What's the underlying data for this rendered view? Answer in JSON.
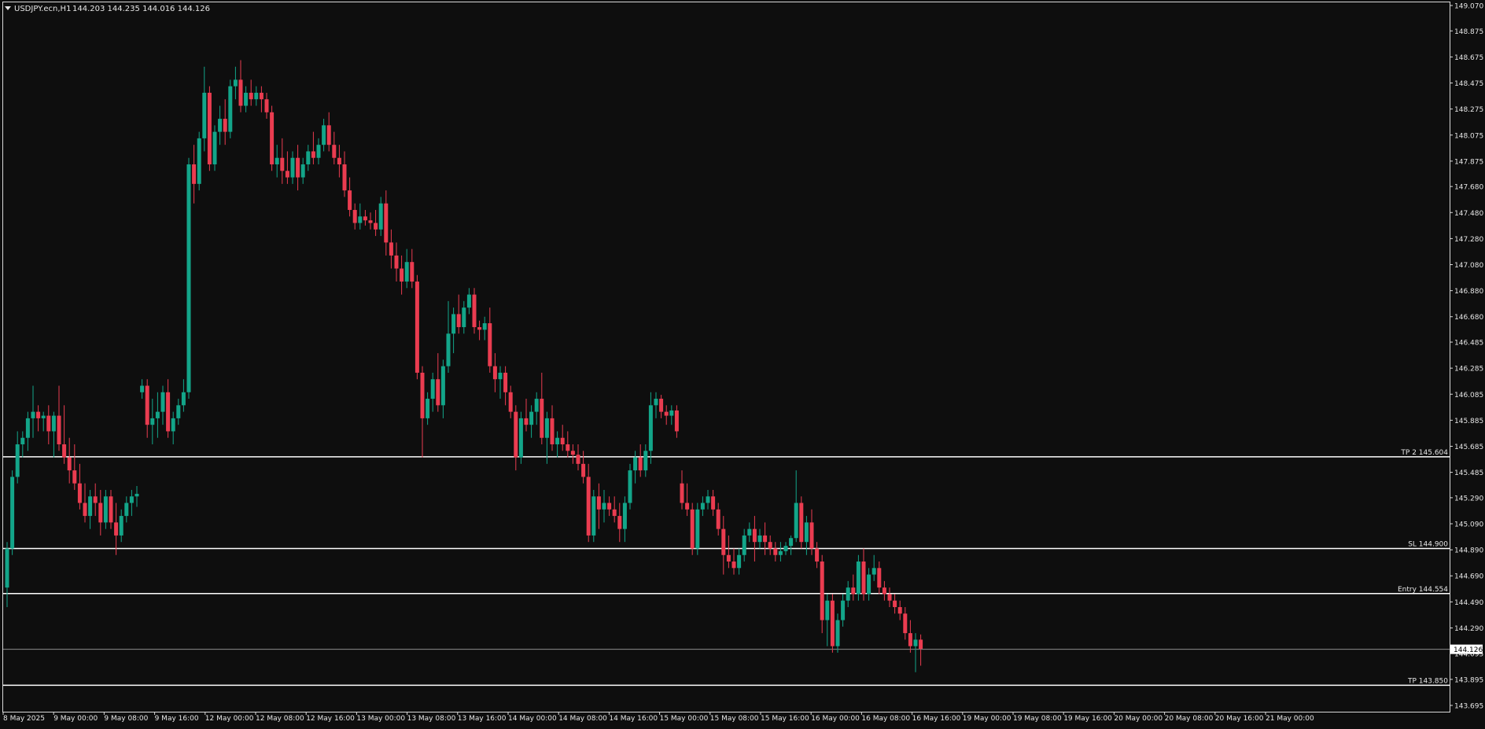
{
  "header": {
    "symbol_label": "USDJPY.ecn,H1",
    "ohlc_label": "144.203 144.235 144.016 144.126"
  },
  "colors": {
    "background": "#0e0e0e",
    "frame": "#d8d8d8",
    "bull": "#13a589",
    "bear": "#ea3c50",
    "level_line": "#ffffff",
    "bid_line": "#8c8c8c",
    "text": "#e6e6e6"
  },
  "chart_data": {
    "type": "candlestick",
    "symbol": "USDJPY.ecn",
    "timeframe": "H1",
    "grid": false,
    "y_axis": {
      "position": "right",
      "range": [
        143.695,
        149.07
      ],
      "ticks": [
        "149.070",
        "148.875",
        "148.675",
        "148.475",
        "148.275",
        "148.075",
        "147.875",
        "147.680",
        "147.480",
        "147.280",
        "147.080",
        "146.880",
        "146.680",
        "146.485",
        "146.285",
        "146.085",
        "145.885",
        "145.685",
        "145.485",
        "145.290",
        "145.090",
        "144.890",
        "144.690",
        "144.490",
        "144.290",
        "144.095",
        "143.895",
        "143.695"
      ]
    },
    "x_axis": {
      "ticks": [
        "8 May 2025",
        "9 May 00:00",
        "9 May 08:00",
        "9 May 16:00",
        "12 May 00:00",
        "12 May 08:00",
        "12 May 16:00",
        "13 May 00:00",
        "13 May 08:00",
        "13 May 16:00",
        "14 May 00:00",
        "14 May 08:00",
        "14 May 16:00",
        "15 May 00:00",
        "15 May 08:00",
        "15 May 16:00",
        "16 May 00:00",
        "16 May 08:00",
        "16 May 16:00",
        "19 May 00:00",
        "19 May 08:00",
        "19 May 16:00",
        "20 May 00:00",
        "20 May 08:00",
        "20 May 16:00",
        "21 May 00:00"
      ]
    },
    "levels": [
      {
        "label": "TP 2 145.604",
        "value": 145.604
      },
      {
        "label": "SL 144.900",
        "value": 144.9
      },
      {
        "label": "Entry 144.554",
        "value": 144.554
      },
      {
        "label": "TP 143.850",
        "value": 143.85
      }
    ],
    "current_price": {
      "value": 144.126,
      "label": "144.126"
    },
    "candles": [
      [
        144.6,
        144.95,
        144.45,
        144.9
      ],
      [
        144.9,
        145.5,
        144.85,
        145.45
      ],
      [
        145.45,
        145.8,
        145.4,
        145.7
      ],
      [
        145.7,
        145.8,
        145.6,
        145.75
      ],
      [
        145.75,
        145.95,
        145.65,
        145.9
      ],
      [
        145.9,
        146.15,
        145.75,
        145.95
      ],
      [
        145.95,
        146.0,
        145.8,
        145.9
      ],
      [
        145.9,
        145.95,
        145.8,
        145.92
      ],
      [
        145.92,
        146.0,
        145.7,
        145.8
      ],
      [
        145.8,
        145.95,
        145.6,
        145.92
      ],
      [
        145.92,
        146.15,
        145.65,
        145.7
      ],
      [
        145.7,
        146.0,
        145.55,
        145.6
      ],
      [
        145.6,
        145.75,
        145.4,
        145.5
      ],
      [
        145.5,
        145.7,
        145.35,
        145.4
      ],
      [
        145.4,
        145.55,
        145.2,
        145.25
      ],
      [
        145.25,
        145.4,
        145.1,
        145.15
      ],
      [
        145.15,
        145.35,
        145.05,
        145.3
      ],
      [
        145.3,
        145.4,
        145.15,
        145.25
      ],
      [
        145.25,
        145.35,
        145.0,
        145.1
      ],
      [
        145.1,
        145.35,
        145.05,
        145.3
      ],
      [
        145.3,
        145.35,
        145.05,
        145.1
      ],
      [
        145.1,
        145.25,
        144.85,
        145.0
      ],
      [
        145.0,
        145.2,
        144.95,
        145.15
      ],
      [
        145.15,
        145.3,
        145.1,
        145.25
      ],
      [
        145.25,
        145.35,
        145.15,
        145.3
      ],
      [
        145.3,
        145.38,
        145.22,
        145.32
      ],
      [
        146.1,
        146.2,
        146.05,
        146.15
      ],
      [
        146.15,
        146.2,
        145.75,
        145.85
      ],
      [
        145.85,
        146.05,
        145.7,
        145.9
      ],
      [
        145.9,
        146.1,
        145.75,
        145.95
      ],
      [
        145.95,
        146.15,
        145.85,
        146.1
      ],
      [
        146.1,
        146.2,
        145.75,
        145.8
      ],
      [
        145.8,
        145.95,
        145.7,
        145.9
      ],
      [
        145.9,
        146.05,
        145.85,
        146.0
      ],
      [
        146.0,
        146.2,
        145.95,
        146.1
      ],
      [
        146.1,
        147.9,
        146.05,
        147.85
      ],
      [
        147.85,
        148.0,
        147.55,
        147.7
      ],
      [
        147.7,
        148.1,
        147.65,
        148.05
      ],
      [
        148.05,
        148.6,
        147.95,
        148.4
      ],
      [
        148.4,
        148.45,
        147.8,
        147.85
      ],
      [
        147.85,
        148.15,
        147.8,
        148.1
      ],
      [
        148.1,
        148.3,
        148.0,
        148.2
      ],
      [
        148.2,
        148.35,
        148.0,
        148.1
      ],
      [
        148.1,
        148.5,
        148.05,
        148.45
      ],
      [
        148.45,
        148.6,
        148.35,
        148.5
      ],
      [
        148.5,
        148.65,
        148.25,
        148.3
      ],
      [
        148.3,
        148.45,
        148.25,
        148.4
      ],
      [
        148.4,
        148.5,
        148.3,
        148.35
      ],
      [
        148.35,
        148.45,
        148.3,
        148.4
      ],
      [
        148.4,
        148.45,
        148.25,
        148.35
      ],
      [
        148.35,
        148.4,
        148.2,
        148.25
      ],
      [
        148.25,
        148.3,
        147.8,
        147.85
      ],
      [
        147.85,
        148.0,
        147.75,
        147.9
      ],
      [
        147.9,
        148.05,
        147.7,
        147.8
      ],
      [
        147.8,
        147.95,
        147.7,
        147.75
      ],
      [
        147.75,
        147.95,
        147.7,
        147.9
      ],
      [
        147.9,
        148.0,
        147.65,
        147.75
      ],
      [
        147.75,
        147.9,
        147.7,
        147.85
      ],
      [
        147.85,
        148.0,
        147.8,
        147.95
      ],
      [
        147.95,
        148.1,
        147.85,
        147.9
      ],
      [
        147.9,
        148.05,
        147.85,
        148.0
      ],
      [
        148.0,
        148.2,
        147.95,
        148.15
      ],
      [
        148.15,
        148.25,
        147.95,
        148.0
      ],
      [
        148.0,
        148.1,
        147.85,
        147.9
      ],
      [
        147.9,
        148.0,
        147.75,
        147.85
      ],
      [
        147.85,
        147.95,
        147.6,
        147.65
      ],
      [
        147.65,
        147.75,
        147.45,
        147.5
      ],
      [
        147.5,
        147.55,
        147.35,
        147.4
      ],
      [
        147.4,
        147.55,
        147.35,
        147.45
      ],
      [
        147.45,
        147.5,
        147.38,
        147.42
      ],
      [
        147.42,
        147.48,
        147.35,
        147.4
      ],
      [
        147.4,
        147.5,
        147.3,
        147.35
      ],
      [
        147.35,
        147.6,
        147.3,
        147.55
      ],
      [
        147.55,
        147.65,
        147.15,
        147.25
      ],
      [
        147.25,
        147.35,
        147.05,
        147.15
      ],
      [
        147.15,
        147.25,
        146.95,
        147.05
      ],
      [
        147.05,
        147.15,
        146.85,
        146.95
      ],
      [
        146.95,
        147.2,
        146.9,
        147.1
      ],
      [
        147.1,
        147.2,
        146.9,
        146.95
      ],
      [
        146.95,
        147.0,
        146.2,
        146.25
      ],
      [
        146.25,
        146.3,
        145.6,
        145.9
      ],
      [
        145.9,
        146.1,
        145.85,
        146.05
      ],
      [
        146.05,
        146.25,
        145.95,
        146.2
      ],
      [
        146.2,
        146.4,
        145.95,
        146.0
      ],
      [
        146.0,
        146.35,
        145.9,
        146.3
      ],
      [
        146.3,
        146.8,
        146.25,
        146.55
      ],
      [
        146.55,
        146.75,
        146.4,
        146.7
      ],
      [
        146.7,
        146.85,
        146.55,
        146.6
      ],
      [
        146.6,
        146.8,
        146.55,
        146.75
      ],
      [
        146.75,
        146.9,
        146.7,
        146.85
      ],
      [
        146.85,
        146.9,
        146.55,
        146.6
      ],
      [
        146.6,
        146.65,
        146.5,
        146.58
      ],
      [
        146.58,
        146.68,
        146.5,
        146.63
      ],
      [
        146.63,
        146.75,
        146.25,
        146.3
      ],
      [
        146.3,
        146.4,
        146.1,
        146.2
      ],
      [
        146.2,
        146.3,
        146.05,
        146.25
      ],
      [
        146.25,
        146.3,
        146.0,
        146.1
      ],
      [
        146.1,
        146.15,
        145.9,
        145.95
      ],
      [
        145.95,
        146.0,
        145.5,
        145.6
      ],
      [
        145.6,
        145.95,
        145.55,
        145.9
      ],
      [
        145.9,
        146.05,
        145.8,
        145.85
      ],
      [
        145.85,
        146.0,
        145.75,
        145.95
      ],
      [
        145.95,
        146.1,
        145.85,
        146.05
      ],
      [
        146.05,
        146.25,
        145.7,
        145.75
      ],
      [
        145.75,
        145.95,
        145.55,
        145.9
      ],
      [
        145.9,
        146.0,
        145.65,
        145.7
      ],
      [
        145.7,
        145.8,
        145.6,
        145.75
      ],
      [
        145.75,
        145.85,
        145.65,
        145.7
      ],
      [
        145.7,
        145.8,
        145.6,
        145.65
      ],
      [
        145.65,
        145.7,
        145.55,
        145.62
      ],
      [
        145.62,
        145.7,
        145.5,
        145.55
      ],
      [
        145.55,
        145.65,
        145.4,
        145.45
      ],
      [
        145.45,
        145.55,
        144.95,
        145.0
      ],
      [
        145.0,
        145.35,
        144.95,
        145.3
      ],
      [
        145.3,
        145.4,
        145.05,
        145.2
      ],
      [
        145.2,
        145.35,
        145.1,
        145.25
      ],
      [
        145.25,
        145.3,
        145.15,
        145.2
      ],
      [
        145.2,
        145.3,
        145.1,
        145.15
      ],
      [
        145.15,
        145.25,
        144.95,
        145.05
      ],
      [
        145.05,
        145.3,
        144.95,
        145.25
      ],
      [
        145.25,
        145.55,
        145.2,
        145.5
      ],
      [
        145.5,
        145.65,
        145.4,
        145.6
      ],
      [
        145.6,
        145.7,
        145.45,
        145.5
      ],
      [
        145.5,
        145.7,
        145.45,
        145.65
      ],
      [
        145.65,
        146.1,
        145.55,
        146.0
      ],
      [
        146.0,
        146.1,
        145.9,
        146.05
      ],
      [
        146.05,
        146.08,
        145.9,
        145.95
      ],
      [
        145.95,
        146.0,
        145.85,
        145.92
      ],
      [
        145.92,
        146.0,
        145.85,
        145.96
      ],
      [
        145.96,
        146.0,
        145.75,
        145.8
      ],
      [
        145.4,
        145.5,
        145.2,
        145.25
      ],
      [
        145.25,
        145.4,
        145.15,
        145.2
      ],
      [
        145.2,
        145.25,
        144.85,
        144.9
      ],
      [
        144.9,
        145.25,
        144.85,
        145.2
      ],
      [
        145.2,
        145.3,
        145.15,
        145.25
      ],
      [
        145.25,
        145.35,
        145.2,
        145.3
      ],
      [
        145.3,
        145.35,
        145.15,
        145.2
      ],
      [
        145.2,
        145.25,
        145.0,
        145.05
      ],
      [
        145.05,
        145.15,
        144.7,
        144.85
      ],
      [
        144.85,
        145.0,
        144.75,
        144.8
      ],
      [
        144.8,
        144.9,
        144.7,
        144.75
      ],
      [
        144.75,
        144.9,
        144.7,
        144.85
      ],
      [
        144.85,
        145.05,
        144.8,
        145.0
      ],
      [
        145.0,
        145.1,
        144.95,
        145.05
      ],
      [
        145.05,
        145.15,
        144.8,
        144.95
      ],
      [
        144.95,
        145.05,
        144.9,
        145.0
      ],
      [
        145.0,
        145.1,
        144.85,
        144.95
      ],
      [
        144.95,
        145.0,
        144.85,
        144.9
      ],
      [
        144.9,
        144.95,
        144.8,
        144.85
      ],
      [
        144.85,
        144.95,
        144.8,
        144.88
      ],
      [
        144.88,
        144.95,
        144.85,
        144.92
      ],
      [
        144.92,
        145.0,
        144.85,
        144.98
      ],
      [
        144.98,
        145.5,
        144.95,
        145.25
      ],
      [
        145.25,
        145.3,
        144.9,
        144.95
      ],
      [
        144.95,
        145.15,
        144.85,
        145.1
      ],
      [
        145.1,
        145.2,
        144.85,
        144.9
      ],
      [
        144.9,
        144.95,
        144.75,
        144.8
      ],
      [
        144.8,
        144.85,
        144.25,
        144.35
      ],
      [
        144.35,
        144.55,
        144.15,
        144.5
      ],
      [
        144.5,
        144.55,
        144.1,
        144.15
      ],
      [
        144.15,
        144.4,
        144.1,
        144.35
      ],
      [
        144.35,
        144.55,
        144.3,
        144.5
      ],
      [
        144.5,
        144.65,
        144.45,
        144.6
      ],
      [
        144.6,
        144.7,
        144.5,
        144.55
      ],
      [
        144.55,
        144.85,
        144.5,
        144.8
      ],
      [
        144.8,
        144.9,
        144.5,
        144.55
      ],
      [
        144.55,
        144.75,
        144.5,
        144.7
      ],
      [
        144.7,
        144.85,
        144.65,
        144.75
      ],
      [
        144.75,
        144.8,
        144.55,
        144.6
      ],
      [
        144.6,
        144.65,
        144.5,
        144.55
      ],
      [
        144.55,
        144.6,
        144.45,
        144.5
      ],
      [
        144.5,
        144.55,
        144.4,
        144.45
      ],
      [
        144.45,
        144.5,
        144.35,
        144.4
      ],
      [
        144.4,
        144.45,
        144.2,
        144.25
      ],
      [
        144.25,
        144.35,
        144.1,
        144.15
      ],
      [
        144.15,
        144.25,
        143.95,
        144.2
      ],
      [
        144.2,
        144.24,
        144.0,
        144.13
      ]
    ]
  }
}
